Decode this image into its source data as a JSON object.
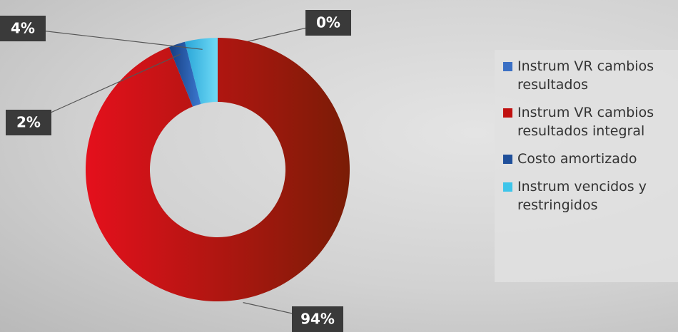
{
  "chart_data": {
    "type": "pie",
    "categories": [
      "Instrum VR cambios resultados",
      "Instrum VR cambios resultados integral",
      "Costo amortizado",
      "Instrum vencidos y restringidos"
    ],
    "values": [
      0,
      94,
      2,
      4
    ],
    "value_labels": [
      "0%",
      "94%",
      "2%",
      "4%"
    ],
    "colors": [
      "#3a6fc4",
      "#c0100f",
      "#1f4f9a",
      "#3ec5ea"
    ],
    "donut": true
  }
}
